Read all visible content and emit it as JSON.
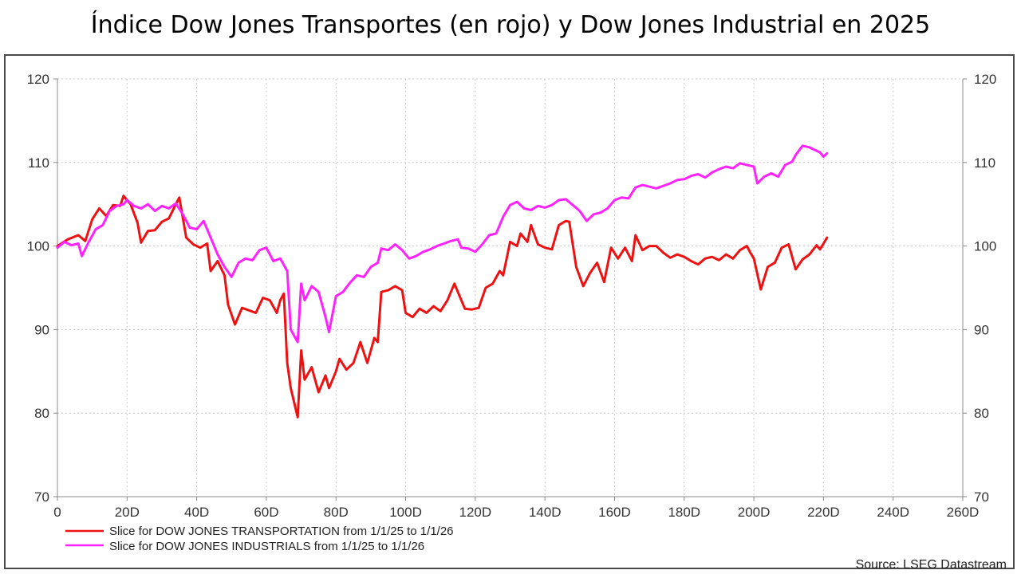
{
  "title": "Índice Dow Jones Transportes (en rojo) y Dow Jones Industrial en 2025",
  "source": "Source: LSEG Datastream",
  "chart_data": {
    "type": "line",
    "title": "Índice Dow Jones Transportes (en rojo) y Dow Jones Industrial en 2025",
    "xlabel": "",
    "ylabel": "",
    "xlim": [
      0,
      260
    ],
    "ylim": [
      70,
      120
    ],
    "grid": true,
    "legend_position": "bottom-left",
    "x_ticks": [
      "0",
      "20D",
      "40D",
      "60D",
      "80D",
      "100D",
      "120D",
      "140D",
      "160D",
      "180D",
      "200D",
      "220D",
      "240D",
      "260D"
    ],
    "x_tick_values": [
      0,
      20,
      40,
      60,
      80,
      100,
      120,
      140,
      160,
      180,
      200,
      220,
      240,
      260
    ],
    "y_ticks": [
      70,
      80,
      90,
      100,
      110,
      120
    ],
    "y_ticks_right": [
      70,
      80,
      90,
      100,
      110,
      120
    ],
    "series": [
      {
        "name": "Slice for DOW JONES TRANSPORTATION from 1/1/25 to 1/1/26",
        "color": "#ee1111",
        "points": [
          [
            0,
            100
          ],
          [
            3,
            100.8
          ],
          [
            6,
            101.3
          ],
          [
            8,
            100.6
          ],
          [
            10,
            103.2
          ],
          [
            12,
            104.5
          ],
          [
            14,
            103.6
          ],
          [
            16,
            104.9
          ],
          [
            18,
            104.8
          ],
          [
            19,
            106
          ],
          [
            21,
            105
          ],
          [
            23,
            102.8
          ],
          [
            24,
            100.4
          ],
          [
            26,
            101.8
          ],
          [
            28,
            101.9
          ],
          [
            30,
            102.9
          ],
          [
            32,
            103.3
          ],
          [
            34,
            105
          ],
          [
            35,
            105.8
          ],
          [
            37,
            101
          ],
          [
            39,
            100.2
          ],
          [
            41,
            99.8
          ],
          [
            43,
            100.3
          ],
          [
            44,
            97
          ],
          [
            46,
            98.2
          ],
          [
            48,
            96.5
          ],
          [
            49,
            93
          ],
          [
            51,
            90.6
          ],
          [
            53,
            92.6
          ],
          [
            55,
            92.3
          ],
          [
            57,
            92
          ],
          [
            59,
            93.8
          ],
          [
            61,
            93.5
          ],
          [
            63,
            92
          ],
          [
            64,
            93.5
          ],
          [
            65,
            94.3
          ],
          [
            66,
            86
          ],
          [
            67,
            83
          ],
          [
            69,
            79.5
          ],
          [
            70,
            87.5
          ],
          [
            71,
            84
          ],
          [
            73,
            85.5
          ],
          [
            75,
            82.5
          ],
          [
            77,
            84.5
          ],
          [
            78,
            83
          ],
          [
            80,
            85
          ],
          [
            81,
            86.5
          ],
          [
            83,
            85.2
          ],
          [
            85,
            86
          ],
          [
            87,
            88.5
          ],
          [
            89,
            86
          ],
          [
            91,
            89
          ],
          [
            92,
            88.5
          ],
          [
            93,
            94.5
          ],
          [
            95,
            94.7
          ],
          [
            97,
            95.2
          ],
          [
            99,
            94.7
          ],
          [
            100,
            92
          ],
          [
            102,
            91.5
          ],
          [
            104,
            92.5
          ],
          [
            106,
            92
          ],
          [
            108,
            92.8
          ],
          [
            110,
            92.2
          ],
          [
            112,
            93.5
          ],
          [
            114,
            95.5
          ],
          [
            116,
            93.5
          ],
          [
            117,
            92.5
          ],
          [
            119,
            92.4
          ],
          [
            121,
            92.6
          ],
          [
            123,
            95
          ],
          [
            125,
            95.5
          ],
          [
            127,
            97
          ],
          [
            128,
            96.5
          ],
          [
            130,
            100.5
          ],
          [
            132,
            100
          ],
          [
            133,
            101.5
          ],
          [
            135,
            100.5
          ],
          [
            136,
            102.5
          ],
          [
            138,
            100.2
          ],
          [
            140,
            99.8
          ],
          [
            142,
            99.6
          ],
          [
            144,
            102.5
          ],
          [
            146,
            103
          ],
          [
            147,
            102.9
          ],
          [
            149,
            97.5
          ],
          [
            151,
            95.2
          ],
          [
            153,
            96.8
          ],
          [
            155,
            98
          ],
          [
            157,
            95.7
          ],
          [
            159,
            99.8
          ],
          [
            161,
            98.5
          ],
          [
            163,
            99.8
          ],
          [
            165,
            98.2
          ],
          [
            166,
            101.3
          ],
          [
            168,
            99.5
          ],
          [
            170,
            100
          ],
          [
            172,
            100
          ],
          [
            174,
            99.2
          ],
          [
            176,
            98.6
          ],
          [
            178,
            99
          ],
          [
            180,
            98.7
          ],
          [
            182,
            98.2
          ],
          [
            184,
            97.8
          ],
          [
            186,
            98.5
          ],
          [
            188,
            98.7
          ],
          [
            190,
            98.3
          ],
          [
            192,
            99
          ],
          [
            194,
            98.5
          ],
          [
            196,
            99.5
          ],
          [
            198,
            100
          ],
          [
            199,
            99.2
          ],
          [
            200,
            98.5
          ],
          [
            202,
            94.8
          ],
          [
            204,
            97.5
          ],
          [
            206,
            98
          ],
          [
            208,
            99.8
          ],
          [
            210,
            100.2
          ],
          [
            212,
            97.2
          ],
          [
            214,
            98.4
          ],
          [
            216,
            99
          ],
          [
            218,
            100.1
          ],
          [
            219,
            99.6
          ],
          [
            220,
            100.3
          ],
          [
            221,
            101
          ]
        ]
      },
      {
        "name": "Slice for DOW JONES INDUSTRIALS from 1/1/25 to 1/1/26",
        "color": "#ff22ff",
        "points": [
          [
            0,
            99.8
          ],
          [
            2,
            100.5
          ],
          [
            4,
            100.1
          ],
          [
            6,
            100.3
          ],
          [
            7,
            98.8
          ],
          [
            9,
            100.5
          ],
          [
            11,
            102
          ],
          [
            13,
            102.5
          ],
          [
            15,
            104.2
          ],
          [
            17,
            104.8
          ],
          [
            19,
            105
          ],
          [
            20,
            105.5
          ],
          [
            22,
            104.8
          ],
          [
            24,
            104.5
          ],
          [
            26,
            105
          ],
          [
            28,
            104.2
          ],
          [
            30,
            104.8
          ],
          [
            32,
            104.5
          ],
          [
            34,
            105.1
          ],
          [
            36,
            103.8
          ],
          [
            38,
            102.2
          ],
          [
            40,
            102
          ],
          [
            42,
            103
          ],
          [
            44,
            101
          ],
          [
            46,
            99
          ],
          [
            48,
            97.5
          ],
          [
            50,
            96.3
          ],
          [
            52,
            98
          ],
          [
            54,
            98.5
          ],
          [
            56,
            98.3
          ],
          [
            58,
            99.5
          ],
          [
            60,
            99.8
          ],
          [
            62,
            98.2
          ],
          [
            64,
            98.5
          ],
          [
            66,
            97
          ],
          [
            67,
            90
          ],
          [
            69,
            88.5
          ],
          [
            70,
            95.5
          ],
          [
            71,
            93.5
          ],
          [
            73,
            95.2
          ],
          [
            75,
            94.5
          ],
          [
            77,
            91.5
          ],
          [
            78,
            89.7
          ],
          [
            80,
            94
          ],
          [
            82,
            94.5
          ],
          [
            84,
            95.6
          ],
          [
            86,
            96.5
          ],
          [
            88,
            96.3
          ],
          [
            90,
            97.5
          ],
          [
            92,
            98
          ],
          [
            93,
            99.7
          ],
          [
            95,
            99.5
          ],
          [
            97,
            100.2
          ],
          [
            99,
            99.5
          ],
          [
            101,
            98.5
          ],
          [
            103,
            98.8
          ],
          [
            105,
            99.3
          ],
          [
            107,
            99.6
          ],
          [
            109,
            100
          ],
          [
            111,
            100.3
          ],
          [
            113,
            100.6
          ],
          [
            115,
            100.8
          ],
          [
            116,
            99.8
          ],
          [
            118,
            99.7
          ],
          [
            120,
            99.3
          ],
          [
            122,
            100.2
          ],
          [
            124,
            101.3
          ],
          [
            126,
            101.5
          ],
          [
            128,
            103.5
          ],
          [
            130,
            104.9
          ],
          [
            132,
            105.3
          ],
          [
            134,
            104.5
          ],
          [
            136,
            104.3
          ],
          [
            138,
            104.8
          ],
          [
            140,
            104.6
          ],
          [
            142,
            104.9
          ],
          [
            144,
            105.5
          ],
          [
            146,
            105.6
          ],
          [
            148,
            104.9
          ],
          [
            150,
            104.2
          ],
          [
            152,
            103
          ],
          [
            154,
            103.8
          ],
          [
            156,
            104
          ],
          [
            158,
            104.5
          ],
          [
            160,
            105.5
          ],
          [
            162,
            105.8
          ],
          [
            164,
            105.7
          ],
          [
            166,
            107
          ],
          [
            168,
            107.3
          ],
          [
            170,
            107.1
          ],
          [
            172,
            106.9
          ],
          [
            174,
            107.2
          ],
          [
            176,
            107.5
          ],
          [
            178,
            107.9
          ],
          [
            180,
            108
          ],
          [
            182,
            108.4
          ],
          [
            184,
            108.6
          ],
          [
            186,
            108.2
          ],
          [
            188,
            108.8
          ],
          [
            190,
            109.2
          ],
          [
            192,
            109.5
          ],
          [
            194,
            109.3
          ],
          [
            196,
            109.9
          ],
          [
            198,
            109.7
          ],
          [
            200,
            109.5
          ],
          [
            201,
            107.5
          ],
          [
            203,
            108.3
          ],
          [
            205,
            108.7
          ],
          [
            207,
            108.3
          ],
          [
            209,
            109.7
          ],
          [
            211,
            110.1
          ],
          [
            212,
            110.9
          ],
          [
            214,
            112
          ],
          [
            216,
            111.8
          ],
          [
            218,
            111.4
          ],
          [
            219,
            111.2
          ],
          [
            220,
            110.7
          ],
          [
            221,
            111.1
          ]
        ]
      }
    ]
  }
}
